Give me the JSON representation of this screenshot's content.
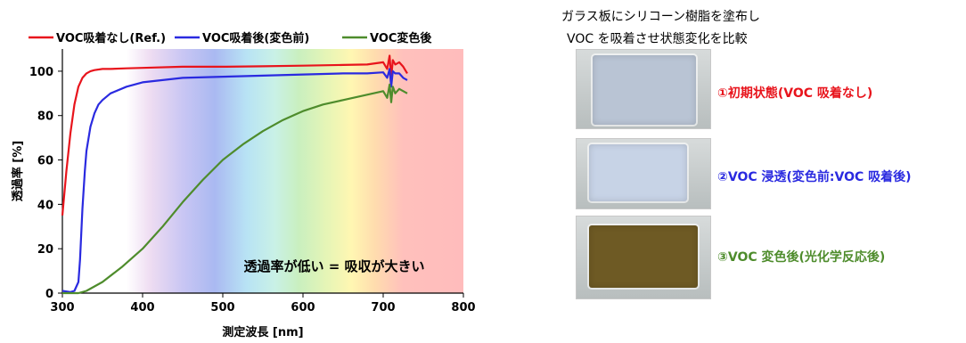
{
  "chart_data": {
    "type": "line",
    "xlabel": "測定波長 [nm]",
    "ylabel": "透過率 [%]",
    "xlim": [
      300,
      800
    ],
    "ylim": [
      0,
      110
    ],
    "xticks": [
      "300",
      "400",
      "500",
      "600",
      "700",
      "800"
    ],
    "yticks": [
      "0",
      "20",
      "40",
      "60",
      "80",
      "100"
    ],
    "legend_position": "top",
    "annotation": "透過率が低い = 吸収が大きい",
    "series": [
      {
        "name": "VOC吸着なし(Ref.)",
        "color": "#e8141c",
        "x": [
          300,
          305,
          310,
          315,
          320,
          325,
          330,
          335,
          340,
          350,
          360,
          380,
          400,
          450,
          500,
          550,
          600,
          650,
          680,
          700,
          705,
          708,
          710,
          712,
          715,
          720,
          725,
          730
        ],
        "y": [
          35,
          55,
          72,
          85,
          93,
          97,
          99,
          100,
          100.5,
          101,
          101,
          101.3,
          101.5,
          102,
          102,
          102.2,
          102.5,
          102.8,
          103,
          104,
          101,
          107,
          97,
          105,
          103,
          104,
          102,
          99
        ]
      },
      {
        "name": "VOC吸着後(変色前)",
        "color": "#2a2ae0",
        "x": [
          300,
          310,
          315,
          320,
          322,
          325,
          328,
          330,
          335,
          340,
          345,
          350,
          360,
          380,
          400,
          450,
          500,
          550,
          600,
          650,
          680,
          700,
          705,
          708,
          710,
          712,
          715,
          720,
          725,
          730
        ],
        "y": [
          1,
          0.5,
          1,
          5,
          15,
          38,
          55,
          64,
          75,
          81,
          85,
          87,
          90,
          93,
          95,
          97,
          97.5,
          98,
          98.5,
          99,
          99,
          99.5,
          97,
          101,
          93,
          100,
          99,
          99,
          97,
          96
        ]
      },
      {
        "name": "VOC変色後",
        "color": "#4e8c2c",
        "x": [
          300,
          320,
          330,
          350,
          375,
          400,
          425,
          450,
          475,
          500,
          525,
          550,
          575,
          600,
          625,
          650,
          675,
          700,
          705,
          708,
          710,
          712,
          715,
          720,
          725,
          730
        ],
        "y": [
          0,
          0,
          1,
          5,
          12,
          20,
          30,
          41,
          51,
          60,
          67,
          73,
          78,
          82,
          85,
          87,
          89,
          91,
          88,
          94,
          86,
          93,
          90,
          92,
          91,
          90
        ]
      }
    ]
  },
  "right_panel": {
    "title_line1": "ガラス板にシリコーン樹脂を塗布し",
    "title_line2": "VOC を吸着させ状態変化を比較",
    "samples": [
      {
        "label": "①初期状態(VOC 吸着なし)",
        "color": "#e8141c",
        "plate_color": "#b9c4d4"
      },
      {
        "label": "②VOC 浸透(変色前:VOC 吸着後)",
        "color": "#2a2ae0",
        "plate_color": "#c7d3e6"
      },
      {
        "label": "③VOC 変色後(光化学反応後)",
        "color": "#4e8c2c",
        "plate_color": "#6e5a24"
      }
    ]
  }
}
